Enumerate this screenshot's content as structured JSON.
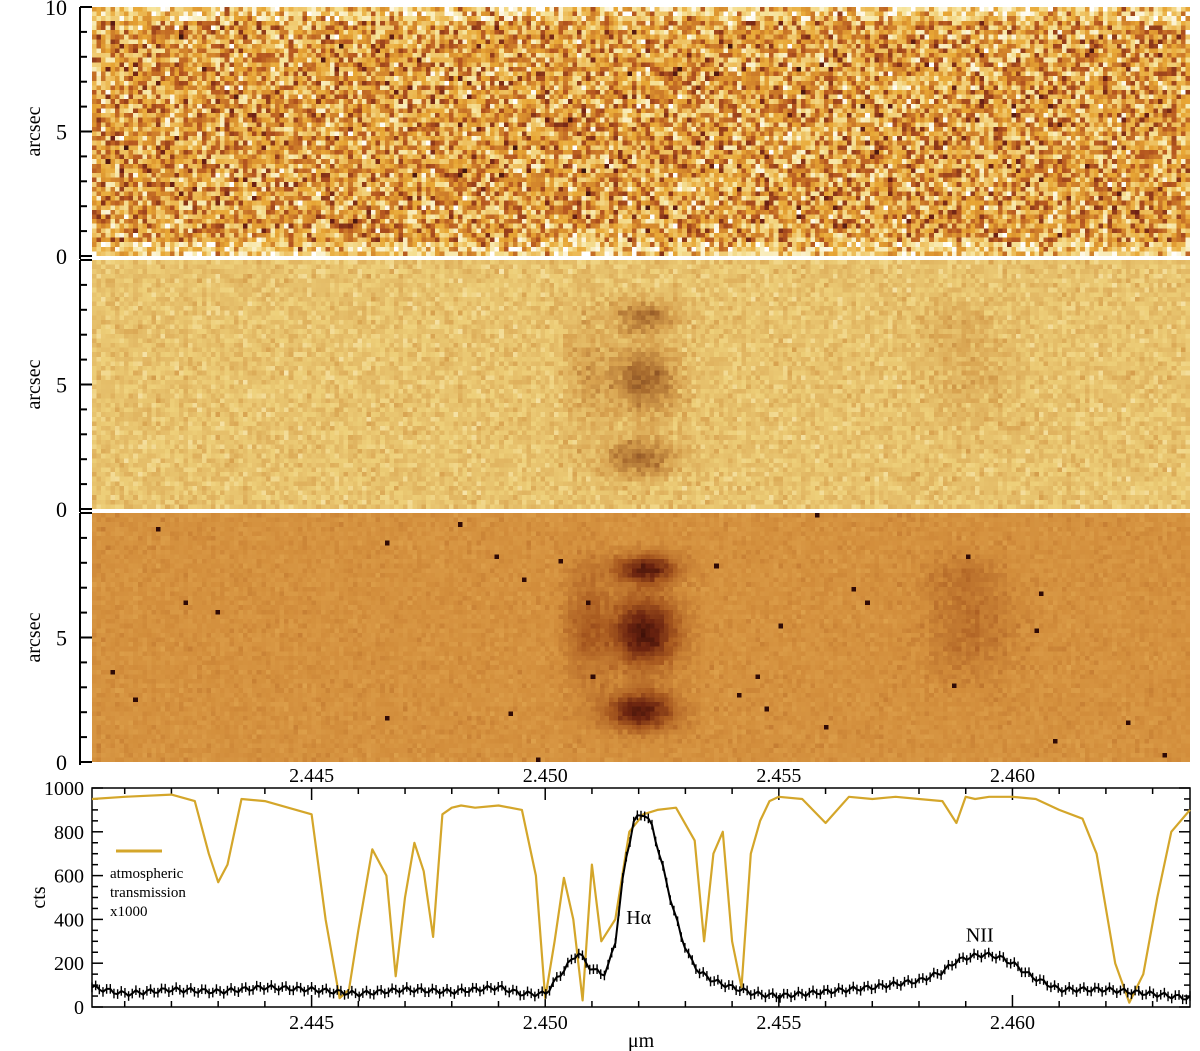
{
  "chart_data": [
    {
      "type": "heatmap",
      "panel": "top",
      "ylabel": "arcsec",
      "ylim": [
        0,
        10
      ],
      "yticks": [
        "0",
        "5",
        "10"
      ],
      "xlim": [
        2.4403,
        2.4638
      ],
      "colormap": [
        "#ffffff",
        "#f6e39a",
        "#e8a735",
        "#b5561f",
        "#6b1f14",
        "#1a0a08"
      ],
      "texture": "noise"
    },
    {
      "type": "heatmap",
      "panel": "middle",
      "ylabel": "arcsec",
      "ylim": [
        0,
        10
      ],
      "yticks": [
        "0",
        "5"
      ],
      "xlim": [
        2.4403,
        2.4638
      ],
      "colormap": [
        "#fff8dc",
        "#eed07a",
        "#d7a14e",
        "#a86b2e",
        "#6e3a1b"
      ],
      "texture": "weak emission"
    },
    {
      "type": "heatmap",
      "panel": "bottom",
      "ylabel": "arcsec",
      "ylim": [
        0,
        10
      ],
      "yticks": [
        "0",
        "5"
      ],
      "xlim": [
        2.4403,
        2.4638
      ],
      "xticks": [
        "2.445",
        "2.450",
        "2.455",
        "2.460"
      ],
      "colormap": [
        "#e8b25a",
        "#d28d3b",
        "#a8591f",
        "#6b230f",
        "#2a0805"
      ],
      "texture": "strong emission"
    },
    {
      "type": "line",
      "panel": "spectrum",
      "xlabel": "μm",
      "ylabel": "cts",
      "xlim": [
        2.4403,
        2.4638
      ],
      "ylim": [
        0,
        1000
      ],
      "xticks": [
        "2.445",
        "2.450",
        "2.455",
        "2.460"
      ],
      "yticks": [
        "0",
        "200",
        "400",
        "600",
        "800",
        "1000"
      ],
      "legend": {
        "label": "atmospheric transmission x1000",
        "color": "#d4a62a",
        "position": "left"
      },
      "annotations": [
        {
          "text": "Hα",
          "x": 2.452,
          "y": 380
        },
        {
          "text": "NII",
          "x": 2.4593,
          "y": 300
        }
      ],
      "series": [
        {
          "name": "atmospheric transmission x1000",
          "color": "#d4a62a",
          "x": [
            2.4403,
            2.441,
            2.442,
            2.4425,
            2.4428,
            2.443,
            2.4432,
            2.4435,
            2.444,
            2.4445,
            2.445,
            2.4453,
            2.4456,
            2.4458,
            2.446,
            2.4463,
            2.4466,
            2.4468,
            2.447,
            2.4472,
            2.4474,
            2.4476,
            2.4478,
            2.448,
            2.4482,
            2.4485,
            2.449,
            2.4495,
            2.4498,
            2.45,
            2.4502,
            2.4504,
            2.4506,
            2.4508,
            2.451,
            2.4512,
            2.4515,
            2.4518,
            2.4521,
            2.4524,
            2.4528,
            2.4532,
            2.4534,
            2.4536,
            2.4538,
            2.454,
            2.4542,
            2.4544,
            2.4546,
            2.4548,
            2.455,
            2.4555,
            2.456,
            2.4565,
            2.457,
            2.4575,
            2.458,
            2.4585,
            2.4588,
            2.459,
            2.4592,
            2.4595,
            2.46,
            2.4605,
            2.461,
            2.4615,
            2.4618,
            2.4622,
            2.4625,
            2.4628,
            2.4631,
            2.4634,
            2.4638
          ],
          "y": [
            950,
            960,
            970,
            940,
            700,
            570,
            650,
            950,
            940,
            910,
            880,
            400,
            40,
            80,
            350,
            720,
            600,
            140,
            500,
            750,
            620,
            320,
            880,
            910,
            920,
            910,
            920,
            900,
            600,
            40,
            300,
            590,
            400,
            30,
            650,
            300,
            400,
            800,
            880,
            900,
            910,
            760,
            300,
            700,
            800,
            300,
            90,
            700,
            850,
            940,
            960,
            950,
            840,
            960,
            950,
            960,
            950,
            940,
            840,
            960,
            950,
            960,
            960,
            950,
            900,
            860,
            700,
            200,
            20,
            150,
            500,
            800,
            900
          ]
        },
        {
          "name": "",
          "color": "#000000",
          "x": [
            2.4403,
            2.441,
            2.442,
            2.443,
            2.444,
            2.445,
            2.446,
            2.447,
            2.448,
            2.449,
            2.4495,
            2.45,
            2.4504,
            2.4507,
            2.451,
            2.4513,
            2.4515,
            2.4517,
            2.4519,
            2.4521,
            2.4523,
            2.4525,
            2.4527,
            2.4529,
            2.4531,
            2.4533,
            2.4536,
            2.454,
            2.4545,
            2.455,
            2.4555,
            2.456,
            2.457,
            2.458,
            2.4585,
            2.4588,
            2.4591,
            2.4594,
            2.4597,
            2.46,
            2.4604,
            2.461,
            2.462,
            2.463,
            2.4638
          ],
          "y": [
            90,
            60,
            80,
            70,
            90,
            80,
            60,
            80,
            70,
            90,
            60,
            60,
            170,
            250,
            170,
            150,
            300,
            650,
            850,
            890,
            820,
            650,
            480,
            330,
            220,
            160,
            120,
            90,
            60,
            50,
            60,
            70,
            90,
            120,
            160,
            210,
            230,
            240,
            230,
            200,
            140,
            80,
            80,
            60,
            40
          ]
        }
      ]
    }
  ]
}
